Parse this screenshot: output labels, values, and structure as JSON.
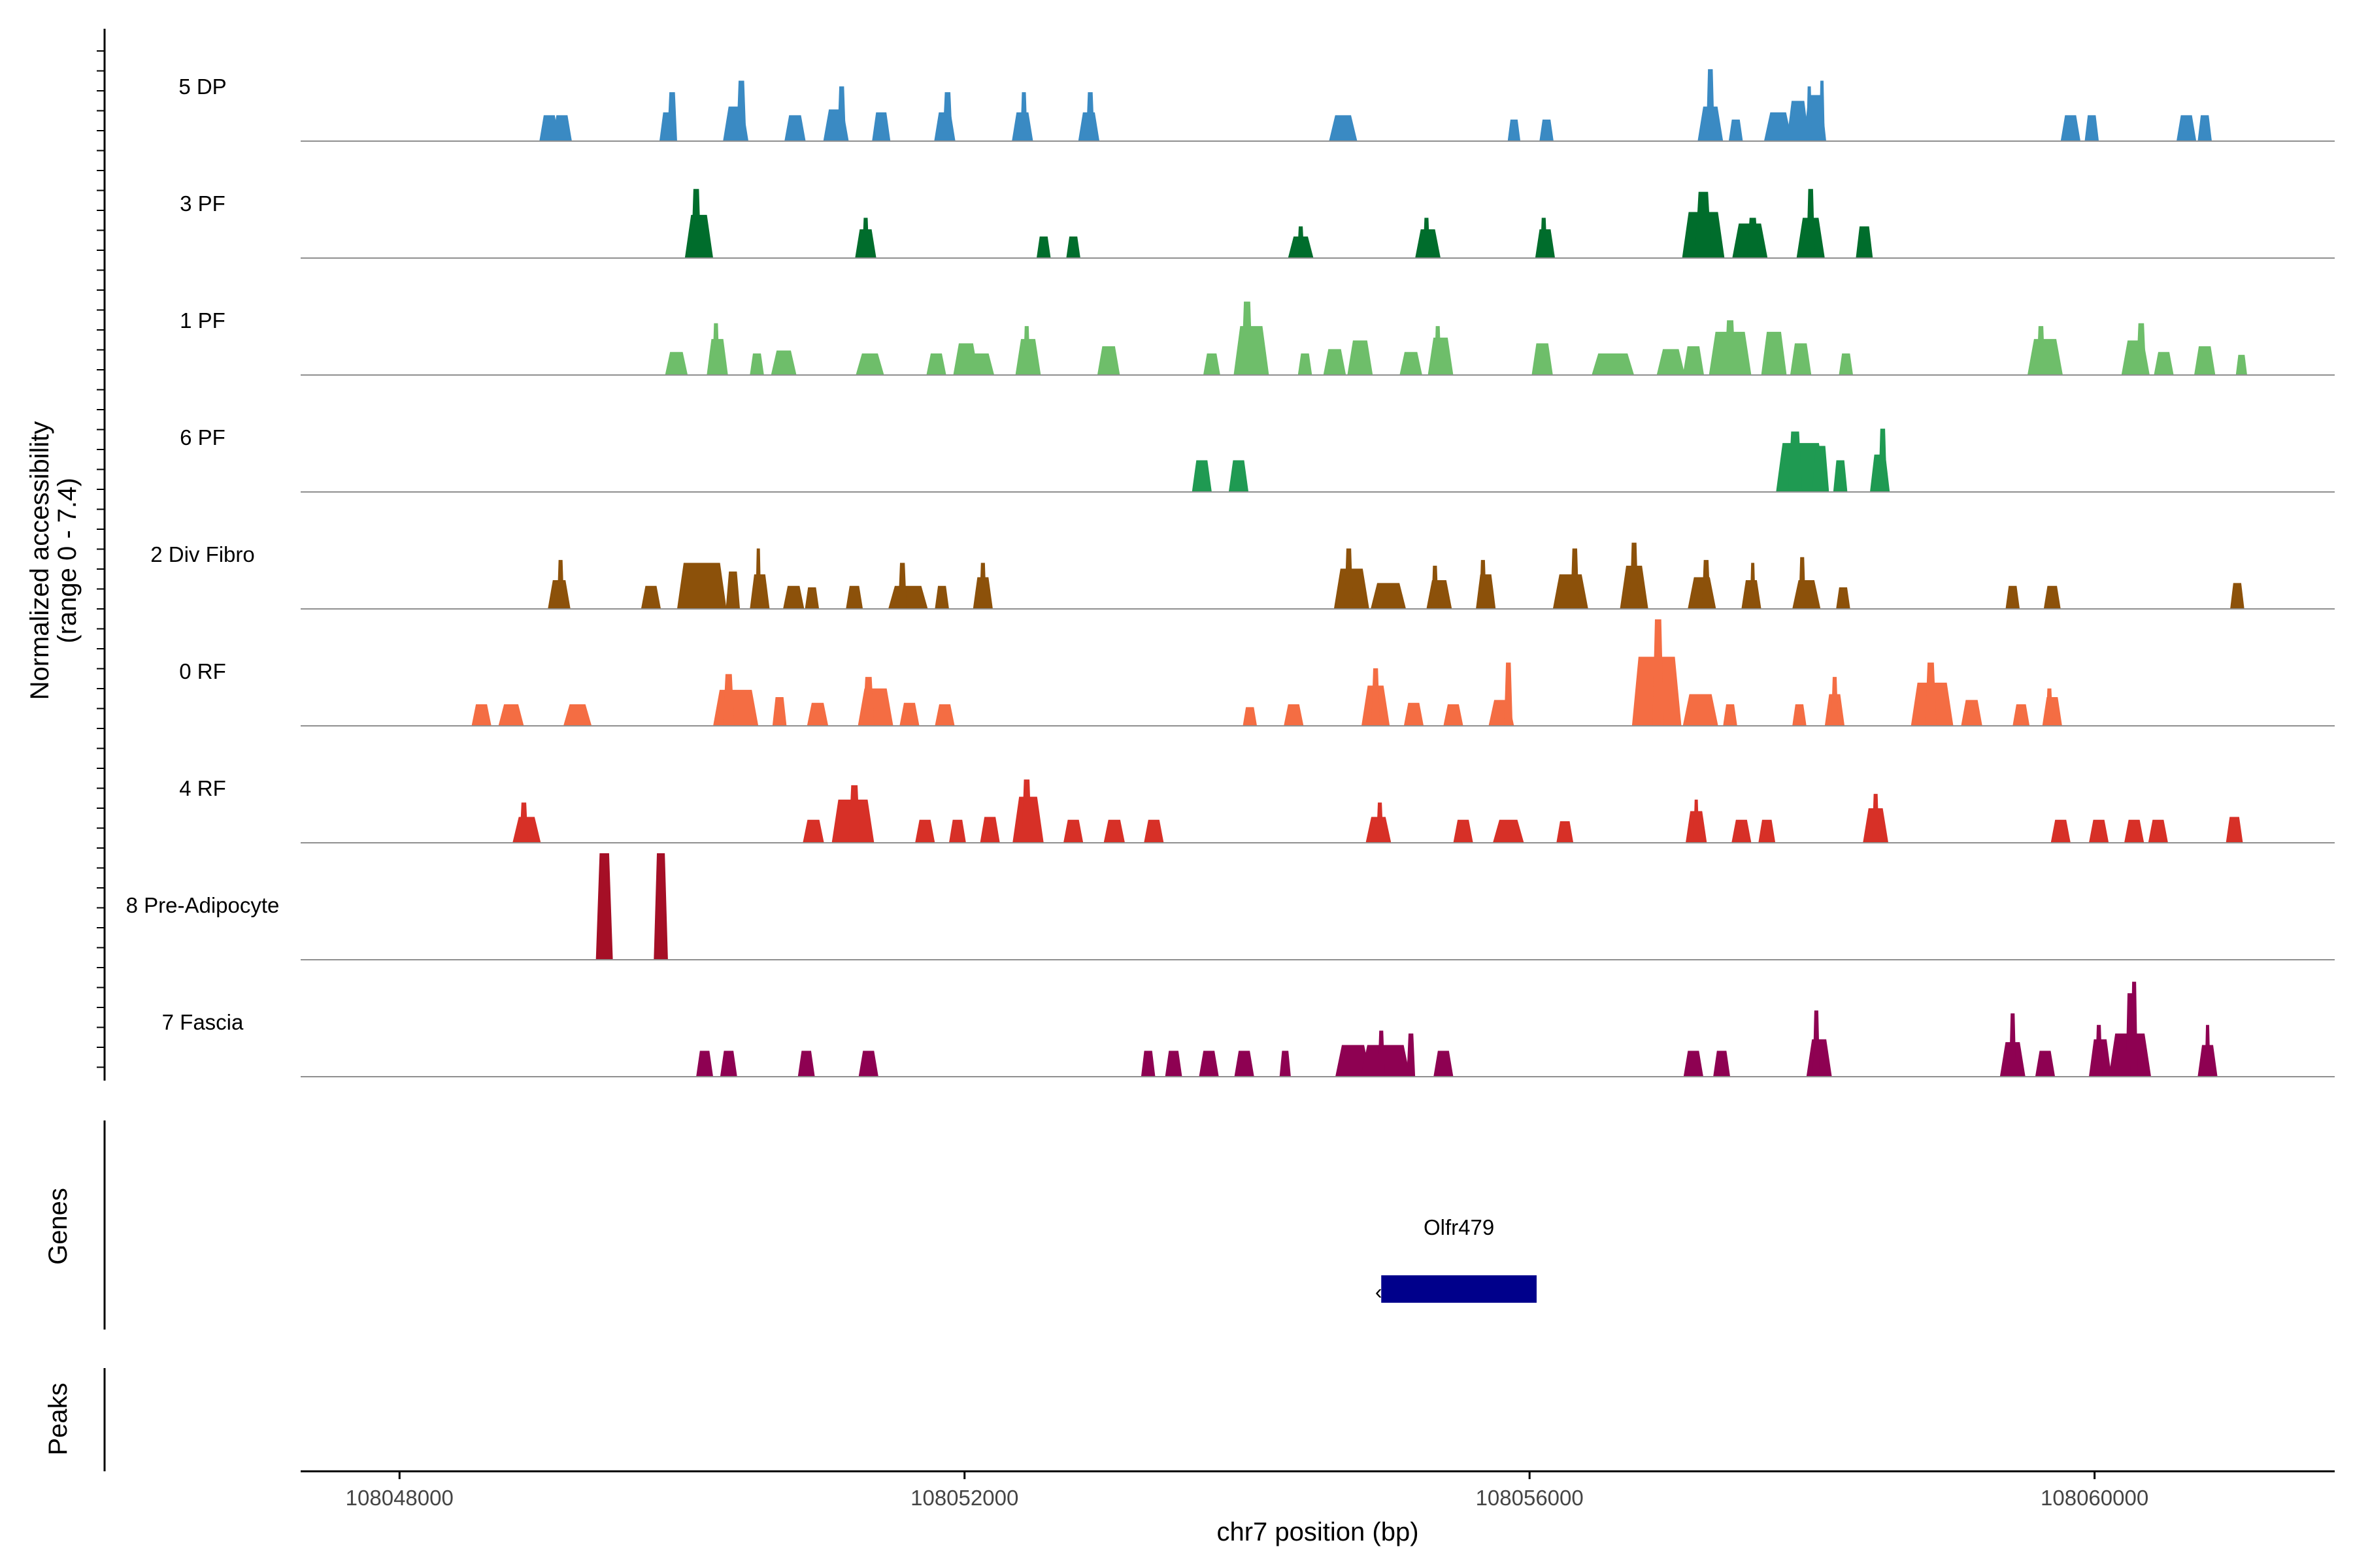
{
  "chart_data": {
    "type": "area",
    "title": "",
    "y_axis_title_line1": "Normalized accessibility",
    "y_axis_title_line2": "(range 0 - 7.4)",
    "y_range": [
      0,
      7.4
    ],
    "x_axis_title": "chr7 position (bp)",
    "x_range": [
      108047300,
      108061700
    ],
    "x_ticks": [
      108048000,
      108052000,
      108056000,
      108060000
    ],
    "x_tick_labels": [
      "108048000",
      "108052000",
      "108056000",
      "108060000"
    ],
    "tracks": [
      {
        "name": "5 DP",
        "color": "#3a8ac3",
        "peaks": [
          [
            108049060,
            0.14,
            1.8
          ],
          [
            108049150,
            0.14,
            1.8
          ],
          [
            108049900,
            0.12,
            2.0
          ],
          [
            108049930,
            0.07,
            3.4
          ],
          [
            108050380,
            0.18,
            2.4
          ],
          [
            108050420,
            0.07,
            4.2
          ],
          [
            108050800,
            0.15,
            1.8
          ],
          [
            108051090,
            0.18,
            2.2
          ],
          [
            108051130,
            0.06,
            3.8
          ],
          [
            108051410,
            0.13,
            2.0
          ],
          [
            108051860,
            0.15,
            2.0
          ],
          [
            108051880,
            0.07,
            3.4
          ],
          [
            108052410,
            0.15,
            2.0
          ],
          [
            108052420,
            0.05,
            3.4
          ],
          [
            108052880,
            0.15,
            2.0
          ],
          [
            108052890,
            0.06,
            3.4
          ],
          [
            108054680,
            0.2,
            1.8
          ],
          [
            108055890,
            0.09,
            1.5
          ],
          [
            108056120,
            0.1,
            1.5
          ],
          [
            108057280,
            0.18,
            2.4
          ],
          [
            108057280,
            0.06,
            5.0
          ],
          [
            108057460,
            0.1,
            1.5
          ],
          [
            108057760,
            0.2,
            2.0
          ],
          [
            108057900,
            0.16,
            2.8
          ],
          [
            108058020,
            0.16,
            3.2
          ],
          [
            108057980,
            0.04,
            3.8
          ],
          [
            108058070,
            0.04,
            4.2
          ],
          [
            108059830,
            0.14,
            1.8
          ],
          [
            108059980,
            0.1,
            1.8
          ],
          [
            108060650,
            0.14,
            1.8
          ],
          [
            108060780,
            0.1,
            1.8
          ]
        ]
      },
      {
        "name": "3 PF",
        "color": "#006d2c",
        "peaks": [
          [
            108050120,
            0.2,
            3.0
          ],
          [
            108050100,
            0.07,
            4.8
          ],
          [
            108051300,
            0.15,
            2.0
          ],
          [
            108051300,
            0.05,
            2.8
          ],
          [
            108052560,
            0.1,
            1.5
          ],
          [
            108052770,
            0.1,
            1.5
          ],
          [
            108054380,
            0.18,
            1.5
          ],
          [
            108054380,
            0.05,
            2.2
          ],
          [
            108055280,
            0.18,
            2.0
          ],
          [
            108055270,
            0.05,
            2.8
          ],
          [
            108056110,
            0.14,
            2.0
          ],
          [
            108056100,
            0.05,
            2.8
          ],
          [
            108057230,
            0.3,
            3.2
          ],
          [
            108057230,
            0.12,
            4.6
          ],
          [
            108057560,
            0.25,
            2.4
          ],
          [
            108057580,
            0.08,
            2.8
          ],
          [
            108057990,
            0.2,
            2.8
          ],
          [
            108057990,
            0.06,
            4.8
          ],
          [
            108058370,
            0.12,
            2.2
          ]
        ]
      },
      {
        "name": "1 PF",
        "color": "#6ebe6a",
        "peaks": [
          [
            108049960,
            0.16,
            1.6
          ],
          [
            108050250,
            0.15,
            2.5
          ],
          [
            108050240,
            0.05,
            3.6
          ],
          [
            108050530,
            0.1,
            1.5
          ],
          [
            108050720,
            0.18,
            1.7
          ],
          [
            108051330,
            0.2,
            1.5
          ],
          [
            108051800,
            0.14,
            1.5
          ],
          [
            108052010,
            0.18,
            2.2
          ],
          [
            108052120,
            0.18,
            1.5
          ],
          [
            108052450,
            0.18,
            2.5
          ],
          [
            108052440,
            0.05,
            3.4
          ],
          [
            108053020,
            0.16,
            2.0
          ],
          [
            108053750,
            0.12,
            1.5
          ],
          [
            108054030,
            0.25,
            3.4
          ],
          [
            108054000,
            0.08,
            5.1
          ],
          [
            108054410,
            0.1,
            1.5
          ],
          [
            108054620,
            0.16,
            1.8
          ],
          [
            108054800,
            0.18,
            2.4
          ],
          [
            108055160,
            0.16,
            1.6
          ],
          [
            108055370,
            0.18,
            2.6
          ],
          [
            108055350,
            0.05,
            3.4
          ],
          [
            108056090,
            0.15,
            2.2
          ],
          [
            108056590,
            0.3,
            1.5
          ],
          [
            108057000,
            0.2,
            1.8
          ],
          [
            108057160,
            0.15,
            2.0
          ],
          [
            108057420,
            0.3,
            3.0
          ],
          [
            108057420,
            0.08,
            3.8
          ],
          [
            108057730,
            0.18,
            3.0
          ],
          [
            108057920,
            0.15,
            2.2
          ],
          [
            108058240,
            0.1,
            1.5
          ],
          [
            108059650,
            0.25,
            2.5
          ],
          [
            108059620,
            0.06,
            3.4
          ],
          [
            108060290,
            0.2,
            2.4
          ],
          [
            108060330,
            0.07,
            3.6
          ],
          [
            108060490,
            0.14,
            1.6
          ],
          [
            108060780,
            0.15,
            2.0
          ],
          [
            108061040,
            0.08,
            1.4
          ]
        ]
      },
      {
        "name": "6 PF",
        "color": "#1f9a52",
        "peaks": [
          [
            108053680,
            0.14,
            2.2
          ],
          [
            108053940,
            0.14,
            2.2
          ],
          [
            108057920,
            0.35,
            3.4
          ],
          [
            108057880,
            0.1,
            4.2
          ],
          [
            108058060,
            0.12,
            3.2
          ],
          [
            108058200,
            0.1,
            2.2
          ],
          [
            108058480,
            0.14,
            2.6
          ],
          [
            108058500,
            0.06,
            4.4
          ]
        ]
      },
      {
        "name": "2 Div Fibro",
        "color": "#8c510a",
        "peaks": [
          [
            108049130,
            0.16,
            2.0
          ],
          [
            108049140,
            0.05,
            3.4
          ],
          [
            108049780,
            0.14,
            1.6
          ],
          [
            108050140,
            0.35,
            3.2
          ],
          [
            108050360,
            0.1,
            2.6
          ],
          [
            108050550,
            0.14,
            2.4
          ],
          [
            108050540,
            0.04,
            4.2
          ],
          [
            108050790,
            0.15,
            1.6
          ],
          [
            108050920,
            0.1,
            1.5
          ],
          [
            108051220,
            0.12,
            1.6
          ],
          [
            108051600,
            0.28,
            1.6
          ],
          [
            108051560,
            0.06,
            3.2
          ],
          [
            108051840,
            0.1,
            1.6
          ],
          [
            108052130,
            0.14,
            2.2
          ],
          [
            108052130,
            0.05,
            3.2
          ],
          [
            108054740,
            0.25,
            2.8
          ],
          [
            108054720,
            0.06,
            4.2
          ],
          [
            108055000,
            0.25,
            1.8
          ],
          [
            108055360,
            0.18,
            2.0
          ],
          [
            108055330,
            0.05,
            3.0
          ],
          [
            108055690,
            0.14,
            2.4
          ],
          [
            108055670,
            0.05,
            3.4
          ],
          [
            108056290,
            0.25,
            2.4
          ],
          [
            108056320,
            0.06,
            4.2
          ],
          [
            108056740,
            0.2,
            3.0
          ],
          [
            108056740,
            0.06,
            4.6
          ],
          [
            108057220,
            0.2,
            2.2
          ],
          [
            108057250,
            0.06,
            3.4
          ],
          [
            108057570,
            0.14,
            2.0
          ],
          [
            108057580,
            0.04,
            3.2
          ],
          [
            108057960,
            0.2,
            2.0
          ],
          [
            108057930,
            0.05,
            3.6
          ],
          [
            108058220,
            0.1,
            1.5
          ],
          [
            108059420,
            0.1,
            1.6
          ],
          [
            108059700,
            0.12,
            1.6
          ],
          [
            108061010,
            0.1,
            1.8
          ]
        ]
      },
      {
        "name": "0 RF",
        "color": "#f46d43",
        "peaks": [
          [
            108048580,
            0.14,
            1.5
          ],
          [
            108048790,
            0.18,
            1.5
          ],
          [
            108049260,
            0.2,
            1.5
          ],
          [
            108050380,
            0.32,
            2.5
          ],
          [
            108050330,
            0.08,
            3.6
          ],
          [
            108050690,
            0.1,
            2.0
          ],
          [
            108050960,
            0.15,
            1.6
          ],
          [
            108051370,
            0.25,
            2.6
          ],
          [
            108051320,
            0.08,
            3.4
          ],
          [
            108051610,
            0.14,
            1.6
          ],
          [
            108051860,
            0.14,
            1.5
          ],
          [
            108054020,
            0.1,
            1.3
          ],
          [
            108054330,
            0.14,
            1.5
          ],
          [
            108054910,
            0.2,
            2.8
          ],
          [
            108054910,
            0.06,
            4.0
          ],
          [
            108055180,
            0.14,
            1.6
          ],
          [
            108055460,
            0.14,
            1.5
          ],
          [
            108055800,
            0.18,
            1.8
          ],
          [
            108055850,
            0.06,
            4.4
          ],
          [
            108056900,
            0.35,
            4.8
          ],
          [
            108056910,
            0.08,
            7.4
          ],
          [
            108057210,
            0.25,
            2.2
          ],
          [
            108057420,
            0.1,
            1.5
          ],
          [
            108057910,
            0.1,
            1.5
          ],
          [
            108058160,
            0.14,
            2.2
          ],
          [
            108058160,
            0.05,
            3.4
          ],
          [
            108058850,
            0.3,
            3.0
          ],
          [
            108058840,
            0.08,
            4.4
          ],
          [
            108059130,
            0.15,
            1.8
          ],
          [
            108059480,
            0.12,
            1.5
          ],
          [
            108059700,
            0.14,
            2.0
          ],
          [
            108059680,
            0.05,
            2.6
          ]
        ]
      },
      {
        "name": "4 RF",
        "color": "#d73027",
        "peaks": [
          [
            108048900,
            0.2,
            1.8
          ],
          [
            108048880,
            0.06,
            2.8
          ],
          [
            108050930,
            0.15,
            1.6
          ],
          [
            108051210,
            0.3,
            3.0
          ],
          [
            108051220,
            0.08,
            4.0
          ],
          [
            108051720,
            0.14,
            1.6
          ],
          [
            108051950,
            0.12,
            1.6
          ],
          [
            108052180,
            0.14,
            1.8
          ],
          [
            108052450,
            0.22,
            3.2
          ],
          [
            108052440,
            0.07,
            4.4
          ],
          [
            108052770,
            0.14,
            1.6
          ],
          [
            108053060,
            0.15,
            1.6
          ],
          [
            108053340,
            0.14,
            1.6
          ],
          [
            108054930,
            0.18,
            1.8
          ],
          [
            108054940,
            0.05,
            2.8
          ],
          [
            108055530,
            0.14,
            1.6
          ],
          [
            108055850,
            0.22,
            1.6
          ],
          [
            108056250,
            0.12,
            1.5
          ],
          [
            108057180,
            0.15,
            2.2
          ],
          [
            108057180,
            0.04,
            3.0
          ],
          [
            108057500,
            0.14,
            1.6
          ],
          [
            108057680,
            0.12,
            1.6
          ],
          [
            108058450,
            0.18,
            2.4
          ],
          [
            108058450,
            0.05,
            3.4
          ],
          [
            108059760,
            0.14,
            1.6
          ],
          [
            108060030,
            0.14,
            1.6
          ],
          [
            108060280,
            0.14,
            1.6
          ],
          [
            108060450,
            0.14,
            1.6
          ],
          [
            108060990,
            0.12,
            1.8
          ]
        ]
      },
      {
        "name": "8 Pre-Adipocyte",
        "color": "#a50f26",
        "peaks": [
          [
            108049450,
            0.12,
            7.4
          ],
          [
            108049850,
            0.1,
            7.4
          ]
        ]
      },
      {
        "name": "7 Fascia",
        "color": "#8e0152",
        "peaks": [
          [
            108050160,
            0.12,
            1.8
          ],
          [
            108050330,
            0.12,
            1.8
          ],
          [
            108050880,
            0.12,
            1.8
          ],
          [
            108051320,
            0.14,
            1.8
          ],
          [
            108053300,
            0.1,
            1.8
          ],
          [
            108053480,
            0.12,
            1.8
          ],
          [
            108053730,
            0.14,
            1.8
          ],
          [
            108053980,
            0.14,
            1.8
          ],
          [
            108054270,
            0.08,
            1.8
          ],
          [
            108054750,
            0.25,
            2.2
          ],
          [
            108054980,
            0.35,
            2.2
          ],
          [
            108054950,
            0.05,
            3.2
          ],
          [
            108055160,
            0.06,
            3.0
          ],
          [
            108055390,
            0.14,
            1.8
          ],
          [
            108057160,
            0.14,
            1.8
          ],
          [
            108057360,
            0.12,
            1.8
          ],
          [
            108058050,
            0.18,
            2.6
          ],
          [
            108058030,
            0.05,
            4.6
          ],
          [
            108059420,
            0.18,
            2.4
          ],
          [
            108059420,
            0.05,
            4.4
          ],
          [
            108059650,
            0.14,
            1.8
          ],
          [
            108060040,
            0.16,
            2.6
          ],
          [
            108060030,
            0.05,
            3.6
          ],
          [
            108060250,
            0.3,
            3.0
          ],
          [
            108060250,
            0.06,
            5.8
          ],
          [
            108060280,
            0.05,
            6.6
          ],
          [
            108060800,
            0.14,
            2.2
          ],
          [
            108060800,
            0.04,
            3.6
          ]
        ]
      }
    ],
    "genes_track_label": "Genes",
    "genes": [
      {
        "name": "Olfr479",
        "start": 108054950,
        "end": 108056050,
        "strand": "-"
      }
    ],
    "peaks_track_label": "Peaks",
    "grid": false
  }
}
